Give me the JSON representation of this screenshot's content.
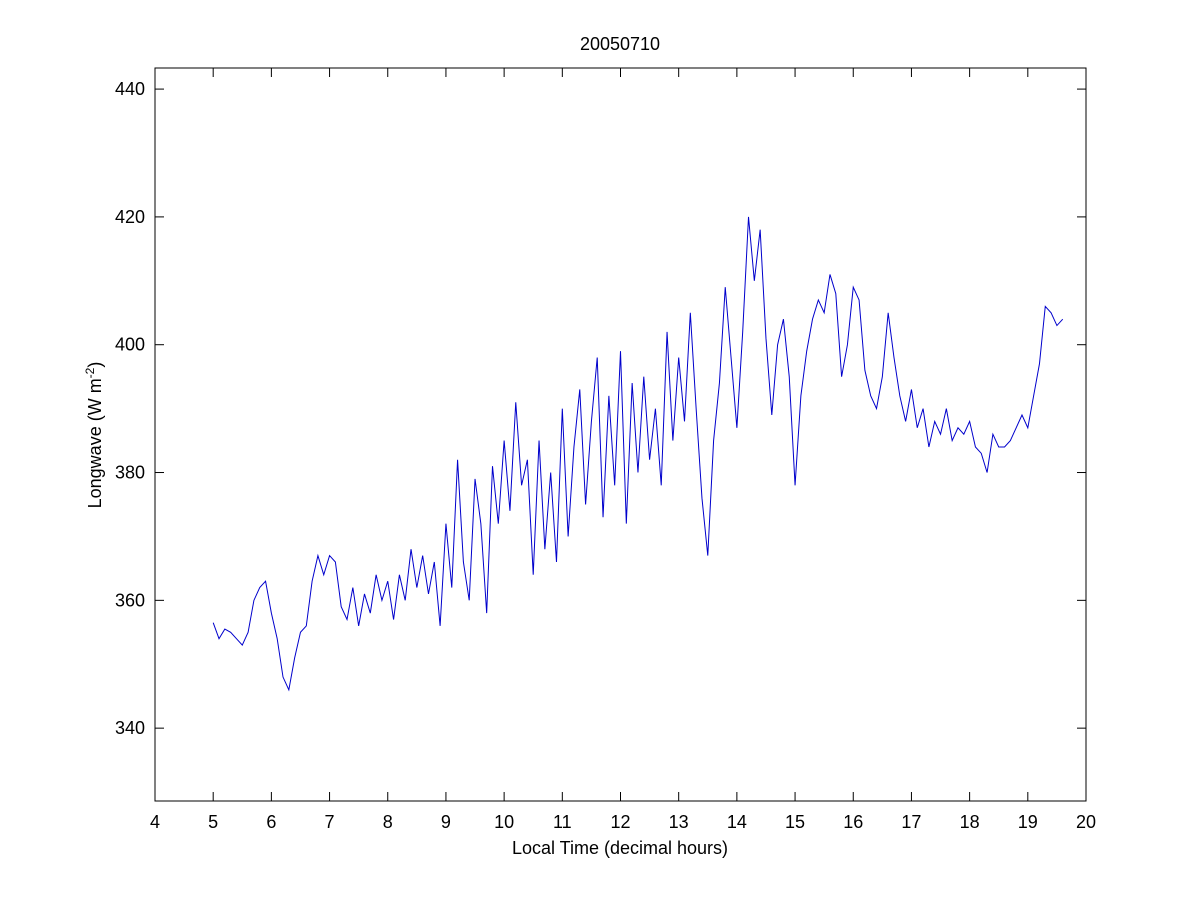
{
  "chart_data": {
    "type": "line",
    "title": "20050710",
    "xlabel": "Local Time (decimal hours)",
    "ylabel": {
      "text": "Longwave (W m",
      "superscript": "-2",
      "suffix": ")"
    },
    "x": [
      5.0,
      5.1,
      5.2,
      5.3,
      5.4,
      5.5,
      5.6,
      5.7,
      5.8,
      5.9,
      6.0,
      6.1,
      6.2,
      6.3,
      6.4,
      6.5,
      6.6,
      6.7,
      6.8,
      6.9,
      7.0,
      7.1,
      7.2,
      7.3,
      7.4,
      7.5,
      7.6,
      7.7,
      7.8,
      7.9,
      8.0,
      8.1,
      8.2,
      8.3,
      8.4,
      8.5,
      8.6,
      8.7,
      8.8,
      8.9,
      9.0,
      9.1,
      9.2,
      9.3,
      9.4,
      9.5,
      9.6,
      9.7,
      9.8,
      9.9,
      10.0,
      10.1,
      10.2,
      10.3,
      10.4,
      10.5,
      10.6,
      10.7,
      10.8,
      10.9,
      11.0,
      11.1,
      11.2,
      11.3,
      11.4,
      11.5,
      11.6,
      11.7,
      11.8,
      11.9,
      12.0,
      12.1,
      12.2,
      12.3,
      12.4,
      12.5,
      12.6,
      12.7,
      12.8,
      12.9,
      13.0,
      13.1,
      13.2,
      13.3,
      13.4,
      13.5,
      13.6,
      13.7,
      13.8,
      13.9,
      14.0,
      14.1,
      14.2,
      14.3,
      14.4,
      14.5,
      14.6,
      14.7,
      14.8,
      14.9,
      15.0,
      15.1,
      15.2,
      15.3,
      15.4,
      15.5,
      15.6,
      15.7,
      15.8,
      15.9,
      16.0,
      16.1,
      16.2,
      16.3,
      16.4,
      16.5,
      16.6,
      16.7,
      16.8,
      16.9,
      17.0,
      17.1,
      17.2,
      17.3,
      17.4,
      17.5,
      17.6,
      17.7,
      17.8,
      17.9,
      18.0,
      18.1,
      18.2,
      18.3,
      18.4,
      18.5,
      18.6,
      18.7,
      18.8,
      18.9,
      19.0,
      19.1,
      19.2,
      19.3,
      19.4,
      19.5,
      19.6
    ],
    "series": [
      {
        "color": "#0000cc",
        "values": [
          356.5,
          354,
          355.5,
          355,
          354,
          353,
          355,
          360,
          362,
          363,
          358,
          354,
          348,
          346,
          351,
          355,
          356,
          363,
          367,
          364,
          367,
          366,
          359,
          357,
          362,
          356,
          361,
          358,
          364,
          360,
          363,
          357,
          364,
          360,
          368,
          362,
          367,
          361,
          366,
          356,
          372,
          362,
          382,
          366,
          360,
          379,
          372,
          358,
          381,
          372,
          385,
          374,
          391,
          378,
          382,
          364,
          385,
          368,
          380,
          366,
          390,
          370,
          384,
          393,
          375,
          388,
          398,
          373,
          392,
          378,
          399,
          372,
          394,
          380,
          395,
          382,
          390,
          378,
          402,
          385,
          398,
          388,
          405,
          390,
          376,
          367,
          385,
          394,
          409,
          398,
          387,
          402,
          420,
          410,
          418,
          401,
          389,
          400,
          404,
          395,
          378,
          392,
          399,
          404,
          407,
          405,
          411,
          408,
          395,
          400,
          409,
          407,
          396,
          392,
          390,
          395,
          405,
          398,
          392,
          388,
          393,
          387,
          390,
          384,
          388,
          386,
          390,
          385,
          387,
          386,
          388,
          384,
          383,
          380,
          386,
          384,
          384,
          385,
          387,
          389,
          387,
          392,
          397,
          406,
          405,
          403,
          404
        ]
      }
    ],
    "xlim": [
      4,
      20
    ],
    "xticks": [
      4,
      5,
      6,
      7,
      8,
      9,
      10,
      11,
      12,
      13,
      14,
      15,
      16,
      17,
      18,
      19,
      20
    ],
    "ylim": [
      328.6,
      443.3
    ],
    "yticks": [
      340,
      360,
      380,
      400,
      420,
      440
    ]
  }
}
